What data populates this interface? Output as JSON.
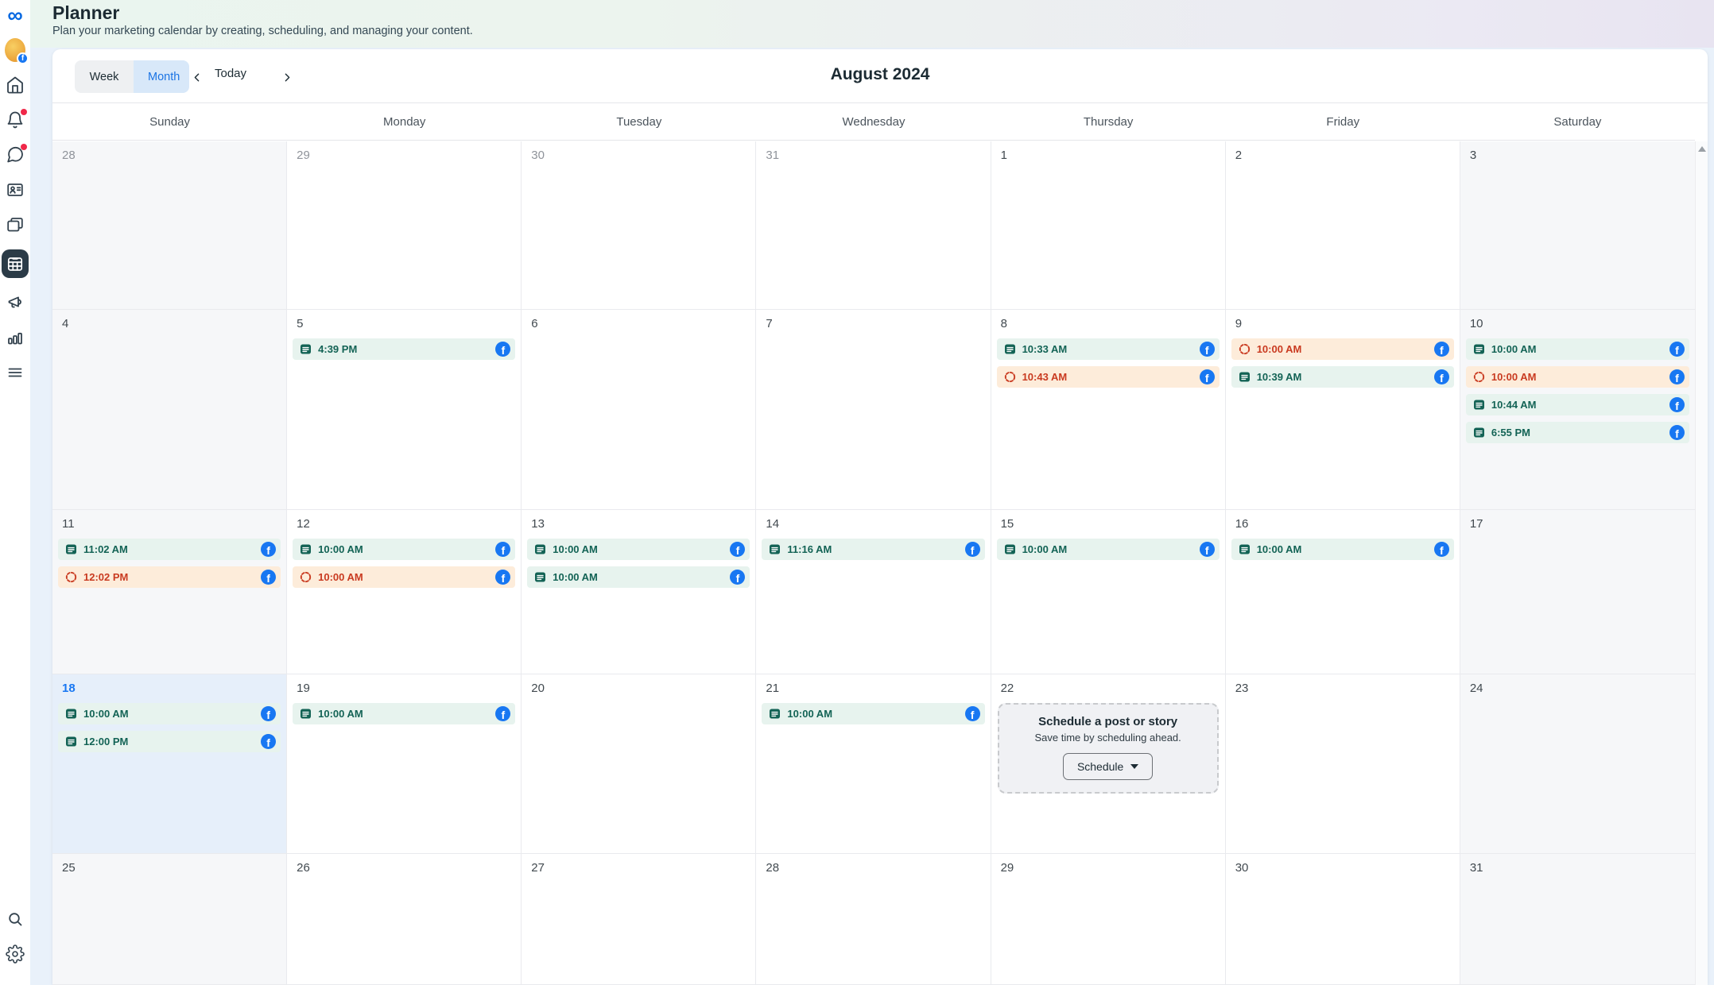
{
  "header": {
    "title": "Planner",
    "subtitle": "Plan your marketing calendar by creating, scheduling, and managing your content."
  },
  "toolbar": {
    "week_label": "Week",
    "month_label": "Month",
    "today_label": "Today",
    "month_title": "August 2024",
    "active_view": "Month"
  },
  "sidebar": {
    "items": [
      {
        "key": "meta-logo",
        "icon": "meta-logo",
        "type": "logo"
      },
      {
        "key": "business-avatar",
        "icon": "avatar",
        "type": "avatar",
        "badge": "facebook"
      },
      {
        "key": "home",
        "icon": "home"
      },
      {
        "key": "notifications",
        "icon": "bell",
        "dot": true
      },
      {
        "key": "inbox",
        "icon": "chat",
        "dot": true
      },
      {
        "key": "contacts",
        "icon": "contact-card"
      },
      {
        "key": "content",
        "icon": "windows"
      },
      {
        "key": "planner",
        "icon": "calendar",
        "selected": true
      },
      {
        "key": "ads",
        "icon": "megaphone"
      },
      {
        "key": "insights",
        "icon": "chart"
      },
      {
        "key": "more",
        "icon": "menu"
      }
    ],
    "bottom_items": [
      {
        "key": "search",
        "icon": "search"
      },
      {
        "key": "settings",
        "icon": "gear"
      }
    ]
  },
  "calendar": {
    "day_headers": [
      "Sunday",
      "Monday",
      "Tuesday",
      "Wednesday",
      "Thursday",
      "Friday",
      "Saturday"
    ],
    "weeks": [
      {
        "days": [
          {
            "date": "28",
            "in_month": false,
            "events": []
          },
          {
            "date": "29",
            "in_month": false,
            "events": []
          },
          {
            "date": "30",
            "in_month": false,
            "events": []
          },
          {
            "date": "31",
            "in_month": false,
            "events": []
          },
          {
            "date": "1",
            "in_month": true,
            "events": []
          },
          {
            "date": "2",
            "in_month": true,
            "events": []
          },
          {
            "date": "3",
            "in_month": true,
            "events": []
          }
        ]
      },
      {
        "days": [
          {
            "date": "4",
            "in_month": true,
            "events": []
          },
          {
            "date": "5",
            "in_month": true,
            "events": [
              {
                "time": "4:39 PM",
                "type": "post"
              }
            ]
          },
          {
            "date": "6",
            "in_month": true,
            "events": []
          },
          {
            "date": "7",
            "in_month": true,
            "events": []
          },
          {
            "date": "8",
            "in_month": true,
            "events": [
              {
                "time": "10:33 AM",
                "type": "post"
              },
              {
                "time": "10:43 AM",
                "type": "story"
              }
            ]
          },
          {
            "date": "9",
            "in_month": true,
            "events": [
              {
                "time": "10:00 AM",
                "type": "story"
              },
              {
                "time": "10:39 AM",
                "type": "post"
              }
            ]
          },
          {
            "date": "10",
            "in_month": true,
            "events": [
              {
                "time": "10:00 AM",
                "type": "post"
              },
              {
                "time": "10:00 AM",
                "type": "story"
              },
              {
                "time": "10:44 AM",
                "type": "post"
              },
              {
                "time": "6:55 PM",
                "type": "post"
              }
            ]
          }
        ]
      },
      {
        "days": [
          {
            "date": "11",
            "in_month": true,
            "events": [
              {
                "time": "11:02 AM",
                "type": "post"
              },
              {
                "time": "12:02 PM",
                "type": "story"
              }
            ]
          },
          {
            "date": "12",
            "in_month": true,
            "events": [
              {
                "time": "10:00 AM",
                "type": "post"
              },
              {
                "time": "10:00 AM",
                "type": "story"
              }
            ]
          },
          {
            "date": "13",
            "in_month": true,
            "events": [
              {
                "time": "10:00 AM",
                "type": "post"
              },
              {
                "time": "10:00 AM",
                "type": "post"
              }
            ]
          },
          {
            "date": "14",
            "in_month": true,
            "events": [
              {
                "time": "11:16 AM",
                "type": "post"
              }
            ]
          },
          {
            "date": "15",
            "in_month": true,
            "events": [
              {
                "time": "10:00 AM",
                "type": "post"
              }
            ]
          },
          {
            "date": "16",
            "in_month": true,
            "events": [
              {
                "time": "10:00 AM",
                "type": "post"
              }
            ]
          },
          {
            "date": "17",
            "in_month": true,
            "events": []
          }
        ]
      },
      {
        "days": [
          {
            "date": "18",
            "in_month": true,
            "is_today": true,
            "events": [
              {
                "time": "10:00 AM",
                "type": "post"
              },
              {
                "time": "12:00 PM",
                "type": "post"
              }
            ]
          },
          {
            "date": "19",
            "in_month": true,
            "events": [
              {
                "time": "10:00 AM",
                "type": "post"
              }
            ]
          },
          {
            "date": "20",
            "in_month": true,
            "events": []
          },
          {
            "date": "21",
            "in_month": true,
            "events": [
              {
                "time": "10:00 AM",
                "type": "post"
              }
            ]
          },
          {
            "date": "22",
            "in_month": true,
            "events": [],
            "has_schedule_card": true
          },
          {
            "date": "23",
            "in_month": true,
            "events": []
          },
          {
            "date": "24",
            "in_month": true,
            "events": []
          }
        ]
      },
      {
        "days": [
          {
            "date": "25",
            "in_month": true,
            "events": []
          },
          {
            "date": "26",
            "in_month": true,
            "events": []
          },
          {
            "date": "27",
            "in_month": true,
            "events": []
          },
          {
            "date": "28",
            "in_month": true,
            "events": []
          },
          {
            "date": "29",
            "in_month": true,
            "events": []
          },
          {
            "date": "30",
            "in_month": true,
            "events": []
          },
          {
            "date": "31",
            "in_month": true,
            "events": []
          }
        ]
      }
    ],
    "schedule_card": {
      "title": "Schedule a post or story",
      "subtitle": "Save time by scheduling ahead.",
      "button_label": "Schedule"
    }
  },
  "colors": {
    "accent_blue": "#1877f2",
    "meta_logo_blue": "#0668E1",
    "post_pill_bg": "#e7f3ee",
    "post_pill_text": "#136355",
    "story_pill_bg": "#fdecda",
    "story_pill_text": "#c93a20",
    "today_cell_bg": "#e6effa",
    "weekend_cell_bg": "#f6f7f9",
    "selected_nav_bg": "#2b3b47",
    "notification_dot": "#f02849"
  }
}
